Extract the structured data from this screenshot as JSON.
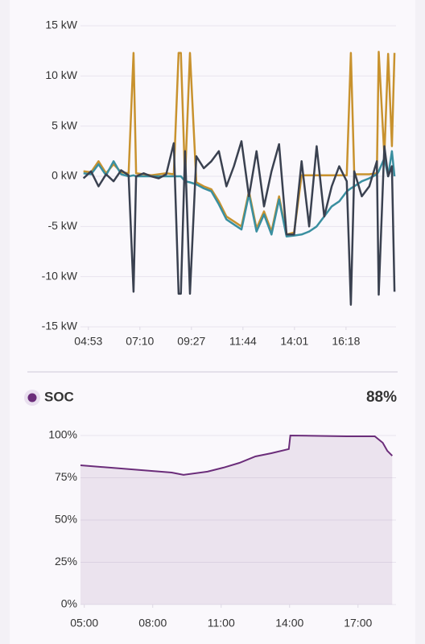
{
  "chart_data": [
    {
      "type": "line",
      "x": [
        280,
        300,
        320,
        340,
        360,
        380,
        400,
        413,
        420,
        440,
        460,
        480,
        500,
        520,
        533,
        539,
        550,
        563,
        580,
        600,
        620,
        640,
        660,
        680,
        700,
        720,
        740,
        760,
        780,
        800,
        820,
        840,
        860,
        880,
        900,
        920,
        940,
        960,
        980,
        991,
        1000,
        1020,
        1040,
        1060,
        1065,
        1080,
        1090,
        1100,
        1107
      ],
      "xlim": [
        272,
        1111
      ],
      "xticks": [
        {
          "value": 293,
          "label": "04:53"
        },
        {
          "value": 430,
          "label": "07:10"
        },
        {
          "value": 567,
          "label": "09:27"
        },
        {
          "value": 704,
          "label": "11:44"
        },
        {
          "value": 841,
          "label": "14:01"
        },
        {
          "value": 978,
          "label": "16:18"
        }
      ],
      "ylim": [
        -15,
        15
      ],
      "yticks": [
        {
          "value": -15,
          "label": "-15 kW"
        },
        {
          "value": -10,
          "label": "-10 kW"
        },
        {
          "value": -5,
          "label": "-5 kW"
        },
        {
          "value": 0,
          "label": "0 kW"
        },
        {
          "value": 5,
          "label": "5 kW"
        },
        {
          "value": 10,
          "label": "10 kW"
        },
        {
          "value": 15,
          "label": "15 kW"
        }
      ],
      "grid": true,
      "series": [
        {
          "color": "#c8922e",
          "values": [
            0.5,
            0.4,
            1.5,
            0.3,
            1.2,
            0.4,
            0.3,
            12.3,
            0.3,
            0.2,
            0.1,
            0.2,
            0.3,
            0.2,
            12.3,
            12.3,
            -0.3,
            12.3,
            -0.6,
            -1,
            -1.3,
            -2.5,
            -4,
            -4.5,
            -5,
            -1.5,
            -5.2,
            -3.5,
            -5.5,
            -2,
            -5.8,
            -5.6,
            0.1,
            0.1,
            0.1,
            0.1,
            0.1,
            0.1,
            0.1,
            12.3,
            0.2,
            0.2,
            0.2,
            0.3,
            12.4,
            2,
            12.2,
            3,
            12.3
          ]
        },
        {
          "color": "#3a8fa0",
          "values": [
            0.3,
            0.2,
            1.2,
            0.1,
            1.5,
            0.2,
            0,
            0.1,
            0,
            0,
            0,
            0,
            0,
            0,
            0,
            0,
            -0.5,
            -0.6,
            -0.8,
            -1.2,
            -1.5,
            -2.8,
            -4.3,
            -4.8,
            -5.3,
            -1.8,
            -5.5,
            -3.8,
            -5.8,
            -2.3,
            -6,
            -5.9,
            -5.8,
            -5.5,
            -5,
            -4,
            -3,
            -2.5,
            -1.5,
            -1.2,
            -1,
            -0.5,
            -0.2,
            0.2,
            0.5,
            1.8,
            0,
            2.5,
            0
          ]
        },
        {
          "color": "#3a4150",
          "values": [
            -0.2,
            0.5,
            -1,
            0.2,
            -0.5,
            0.6,
            0.1,
            -11.5,
            0,
            0.3,
            0,
            -0.2,
            0.2,
            3.3,
            -11.7,
            -11.7,
            2.5,
            -11.7,
            2,
            0.8,
            1.5,
            2.5,
            -1,
            1,
            3.5,
            -2,
            2.5,
            -3,
            0.5,
            3.2,
            -5.8,
            -5.8,
            1.5,
            -5,
            3,
            -4,
            -1,
            1,
            -0.5,
            -12.8,
            0.5,
            -2,
            -1,
            1.5,
            -11.8,
            3,
            0,
            1,
            -11.5
          ]
        }
      ]
    },
    {
      "type": "area",
      "title": "SOC",
      "current": {
        "value": 88,
        "label": "88%"
      },
      "color": "#6b2d7a",
      "x": [
        290,
        530,
        561,
        624,
        666,
        708,
        750,
        792,
        838,
        842,
        990,
        1064,
        1085,
        1097,
        1110
      ],
      "xlim": [
        290,
        1120
      ],
      "xticks": [
        {
          "value": 300,
          "label": "05:00"
        },
        {
          "value": 480,
          "label": "08:00"
        },
        {
          "value": 660,
          "label": "11:00"
        },
        {
          "value": 840,
          "label": "14:00"
        },
        {
          "value": 1020,
          "label": "17:00"
        }
      ],
      "ylim": [
        0,
        100
      ],
      "yticks": [
        {
          "value": 0,
          "label": "0%"
        },
        {
          "value": 25,
          "label": "25%"
        },
        {
          "value": 50,
          "label": "50%"
        },
        {
          "value": 75,
          "label": "75%"
        },
        {
          "value": 100,
          "label": "100%"
        }
      ],
      "grid": true,
      "values": [
        82.4,
        78.1,
        76.7,
        78.6,
        81,
        83.8,
        87.6,
        89.5,
        92,
        100,
        99.5,
        99.5,
        95.7,
        91,
        88
      ]
    }
  ]
}
